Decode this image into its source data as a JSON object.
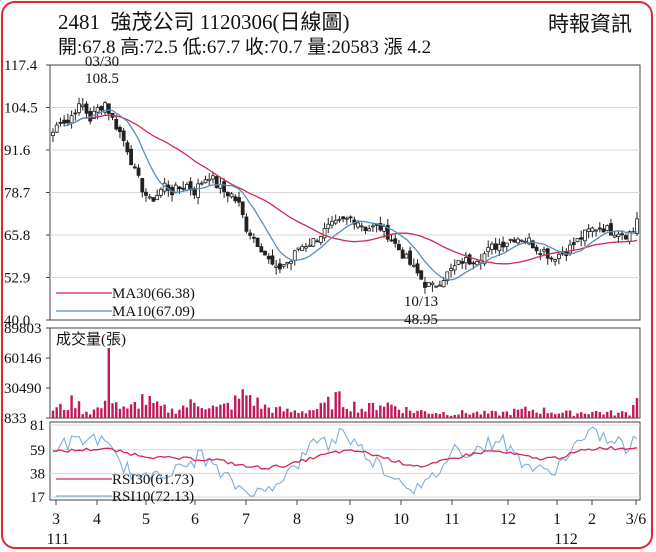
{
  "header": {
    "stock_code": "2481",
    "stock_name": "強茂公司",
    "date_and_type": "1120306(日線圖)",
    "source": "時報資訊",
    "ohlc_text": "開:67.8 高:72.5 低:67.7 收:70.7 量:20583 漲 4.2"
  },
  "colors": {
    "border": "#e0282e",
    "candle": "#222222",
    "ma30": "#d0285a",
    "ma10": "#5a8fb8",
    "volume": "#c2185b",
    "rsi30": "#d0285a",
    "rsi10": "#7faed4",
    "grid": "#d8d8d8"
  },
  "chart_data": [
    {
      "type": "candlestick",
      "title": "",
      "yticks": [
        "117.4",
        "104.5",
        "91.6",
        "78.7",
        "65.8",
        "52.9",
        "40.0"
      ],
      "ylim": [
        40.0,
        117.4
      ],
      "annotations": [
        {
          "date": "03/30",
          "value": "108.5",
          "kind": "high"
        },
        {
          "date": "10/13",
          "value": "48.95",
          "kind": "low"
        }
      ],
      "legend": [
        {
          "label": "MA30(66.38)",
          "value": 66.38,
          "color": "#d0285a"
        },
        {
          "label": "MA10(67.09)",
          "value": 67.09,
          "color": "#5a8fb8"
        }
      ],
      "price_path": [
        [
          0,
          97
        ],
        [
          2,
          101
        ],
        [
          4,
          100
        ],
        [
          6,
          104
        ],
        [
          8,
          105
        ],
        [
          10,
          101
        ],
        [
          12,
          104
        ],
        [
          14,
          106
        ],
        [
          16,
          101
        ],
        [
          18,
          97
        ],
        [
          20,
          92
        ],
        [
          22,
          85
        ],
        [
          24,
          80
        ],
        [
          26,
          76
        ],
        [
          28,
          78
        ],
        [
          30,
          81
        ],
        [
          32,
          79
        ],
        [
          34,
          80
        ],
        [
          36,
          81
        ],
        [
          38,
          79
        ],
        [
          40,
          82
        ],
        [
          42,
          84
        ],
        [
          44,
          81
        ],
        [
          46,
          79
        ],
        [
          48,
          78
        ],
        [
          50,
          75
        ],
        [
          52,
          68
        ],
        [
          54,
          65
        ],
        [
          56,
          62
        ],
        [
          58,
          58
        ],
        [
          60,
          55
        ],
        [
          62,
          57
        ],
        [
          64,
          58
        ],
        [
          66,
          62
        ],
        [
          68,
          63
        ],
        [
          70,
          64
        ],
        [
          72,
          66
        ],
        [
          74,
          68
        ],
        [
          76,
          69
        ],
        [
          78,
          70
        ],
        [
          80,
          71
        ],
        [
          82,
          70
        ],
        [
          84,
          68
        ],
        [
          86,
          68
        ],
        [
          88,
          68
        ],
        [
          90,
          66
        ],
        [
          92,
          63
        ],
        [
          94,
          60
        ],
        [
          96,
          57
        ],
        [
          98,
          54
        ],
        [
          100,
          51
        ],
        [
          102,
          50
        ],
        [
          104,
          52
        ],
        [
          106,
          54
        ],
        [
          108,
          56
        ],
        [
          110,
          58
        ],
        [
          112,
          58
        ],
        [
          114,
          59
        ],
        [
          116,
          60
        ],
        [
          118,
          62
        ],
        [
          120,
          63
        ],
        [
          122,
          64
        ],
        [
          124,
          65
        ],
        [
          126,
          65
        ],
        [
          128,
          64
        ],
        [
          130,
          62
        ],
        [
          132,
          61
        ],
        [
          134,
          59
        ],
        [
          136,
          60
        ],
        [
          138,
          61
        ],
        [
          140,
          63
        ],
        [
          142,
          65
        ],
        [
          144,
          67
        ],
        [
          146,
          68
        ],
        [
          148,
          68
        ],
        [
          150,
          67
        ],
        [
          152,
          67
        ],
        [
          154,
          66
        ],
        [
          156,
          67
        ],
        [
          157,
          70
        ]
      ]
    },
    {
      "type": "bar",
      "title": "成交量(張)",
      "yticks": [
        "89803",
        "60146",
        "30490",
        "833"
      ],
      "ylim": [
        833,
        89803
      ],
      "volume_profile": [
        [
          0,
          10000
        ],
        [
          2,
          12000
        ],
        [
          4,
          15000
        ],
        [
          6,
          20000
        ],
        [
          8,
          9000
        ],
        [
          10,
          8000
        ],
        [
          14,
          14000
        ],
        [
          15,
          70000
        ],
        [
          16,
          25000
        ],
        [
          17,
          18000
        ],
        [
          18,
          12000
        ],
        [
          20,
          9000
        ],
        [
          24,
          22000
        ],
        [
          28,
          13000
        ],
        [
          32,
          9000
        ],
        [
          36,
          15000
        ],
        [
          40,
          18000
        ],
        [
          44,
          11000
        ],
        [
          48,
          16000
        ],
        [
          52,
          28000
        ],
        [
          56,
          14000
        ],
        [
          60,
          10000
        ],
        [
          64,
          8000
        ],
        [
          68,
          9000
        ],
        [
          72,
          12000
        ],
        [
          76,
          22000
        ],
        [
          80,
          16000
        ],
        [
          84,
          10000
        ],
        [
          88,
          18000
        ],
        [
          92,
          14000
        ],
        [
          96,
          9000
        ],
        [
          100,
          8000
        ],
        [
          104,
          7000
        ],
        [
          108,
          6000
        ],
        [
          112,
          7000
        ],
        [
          116,
          6000
        ],
        [
          120,
          6000
        ],
        [
          124,
          8000
        ],
        [
          128,
          10000
        ],
        [
          132,
          9000
        ],
        [
          136,
          7000
        ],
        [
          140,
          6000
        ],
        [
          144,
          8000
        ],
        [
          148,
          7000
        ],
        [
          152,
          6000
        ],
        [
          155,
          7000
        ],
        [
          157,
          20583
        ]
      ]
    },
    {
      "type": "line",
      "title": "",
      "yticks": [
        "81",
        "59",
        "38",
        "17"
      ],
      "ylim": [
        17,
        81
      ],
      "legend": [
        {
          "label": "RSI30(61.73)",
          "value": 61.73,
          "color": "#d0285a"
        },
        {
          "label": "RSI10(72.13)",
          "value": 72.13,
          "color": "#7faed4"
        }
      ],
      "rsi10_path": [
        [
          0,
          62
        ],
        [
          6,
          66
        ],
        [
          12,
          70
        ],
        [
          16,
          55
        ],
        [
          20,
          42
        ],
        [
          24,
          30
        ],
        [
          28,
          42
        ],
        [
          32,
          38
        ],
        [
          36,
          45
        ],
        [
          40,
          55
        ],
        [
          44,
          40
        ],
        [
          48,
          30
        ],
        [
          52,
          22
        ],
        [
          56,
          20
        ],
        [
          58,
          25
        ],
        [
          60,
          32
        ],
        [
          64,
          40
        ],
        [
          68,
          55
        ],
        [
          70,
          65
        ],
        [
          72,
          72
        ],
        [
          74,
          62
        ],
        [
          76,
          70
        ],
        [
          78,
          78
        ],
        [
          80,
          68
        ],
        [
          84,
          56
        ],
        [
          88,
          45
        ],
        [
          92,
          35
        ],
        [
          96,
          28
        ],
        [
          98,
          24
        ],
        [
          100,
          26
        ],
        [
          104,
          42
        ],
        [
          108,
          60
        ],
        [
          112,
          58
        ],
        [
          116,
          62
        ],
        [
          120,
          70
        ],
        [
          124,
          55
        ],
        [
          128,
          45
        ],
        [
          132,
          38
        ],
        [
          136,
          45
        ],
        [
          140,
          62
        ],
        [
          144,
          70
        ],
        [
          146,
          75
        ],
        [
          148,
          70
        ],
        [
          150,
          65
        ],
        [
          152,
          66
        ],
        [
          155,
          58
        ],
        [
          157,
          72
        ]
      ],
      "rsi30_path": [
        [
          0,
          57
        ],
        [
          8,
          59
        ],
        [
          14,
          60
        ],
        [
          20,
          56
        ],
        [
          28,
          52
        ],
        [
          36,
          51
        ],
        [
          44,
          50
        ],
        [
          52,
          44
        ],
        [
          58,
          43
        ],
        [
          64,
          46
        ],
        [
          70,
          52
        ],
        [
          76,
          57
        ],
        [
          82,
          58
        ],
        [
          88,
          53
        ],
        [
          94,
          47
        ],
        [
          100,
          44
        ],
        [
          106,
          50
        ],
        [
          112,
          55
        ],
        [
          118,
          58
        ],
        [
          124,
          55
        ],
        [
          130,
          51
        ],
        [
          136,
          52
        ],
        [
          142,
          58
        ],
        [
          148,
          61
        ],
        [
          154,
          60
        ],
        [
          157,
          61.73
        ]
      ]
    }
  ],
  "x_axis": {
    "months": [
      "3",
      "4",
      "5",
      "6",
      "7",
      "8",
      "9",
      "10",
      "11",
      "12",
      "1",
      "2",
      "3/6"
    ],
    "years": [
      "111",
      "112"
    ]
  }
}
